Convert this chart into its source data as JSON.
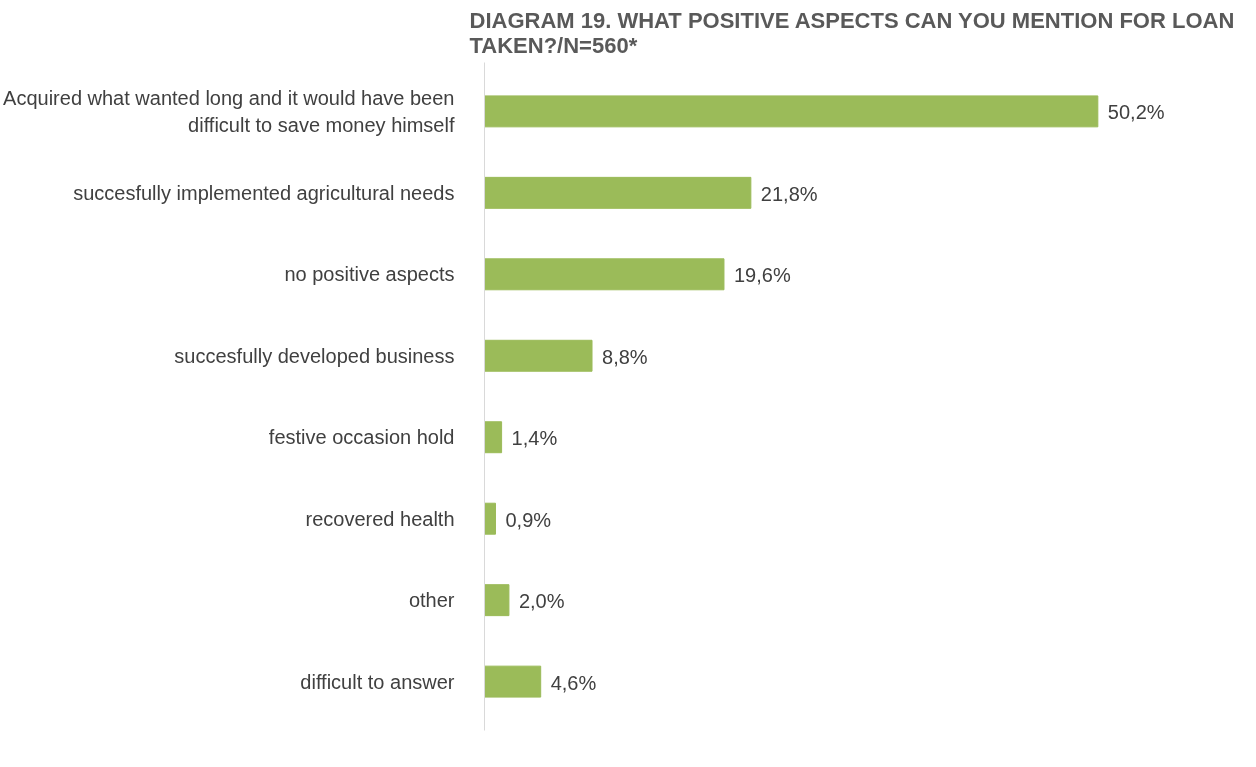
{
  "chart_data": {
    "type": "bar",
    "orientation": "horizontal",
    "title": "DIAGRAM 19. WHAT POSITIVE ASPECTS CAN YOU MENTION FOR LOAN TAKEN?/N=560*",
    "categories": [
      "Acquired what wanted long and it would have been difficult to save money himself",
      "succesfully implemented agricultural needs",
      "no positive aspects",
      "succesfully developed business",
      "festive occasion hold",
      "recovered health",
      "other",
      "difficult to answer"
    ],
    "values": [
      50.2,
      21.8,
      19.6,
      8.8,
      1.4,
      0.9,
      2.0,
      4.6
    ],
    "value_labels": [
      "50,2%",
      "21,8%",
      "19,6%",
      "8,8%",
      "1,4%",
      "0,9%",
      "2,0%",
      "4,6%"
    ],
    "color": "#9bbb59",
    "grid": false
  }
}
